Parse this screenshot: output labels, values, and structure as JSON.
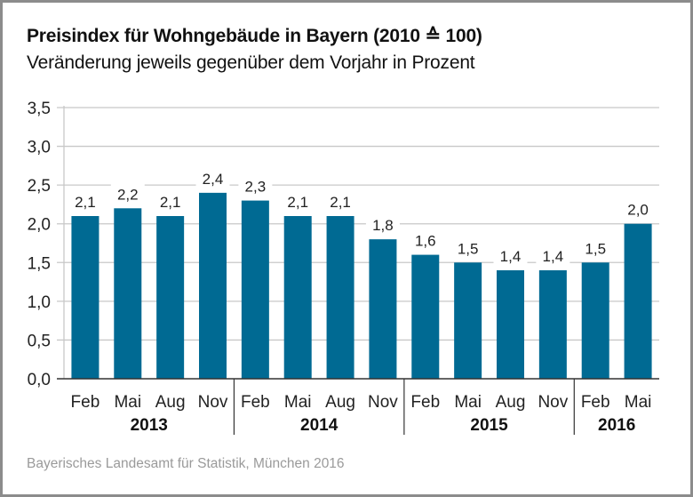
{
  "header": {
    "title": "Preisindex für Wohngebäude in Bayern (2010 ≙ 100)",
    "subtitle": "Veränderung jeweils gegenüber dem Vorjahr in Prozent"
  },
  "footer": {
    "source": "Bayerisches Landesamt für Statistik, München 2016"
  },
  "chart_data": {
    "type": "bar",
    "title": "Preisindex für Wohngebäude in Bayern (2010 ≙ 100)",
    "subtitle": "Veränderung jeweils gegenüber dem Vorjahr in Prozent",
    "xlabel": "",
    "ylabel": "",
    "ylim": [
      0,
      3.5
    ],
    "yticks": [
      "0,0",
      "0,5",
      "1,0",
      "1,5",
      "2,0",
      "2,5",
      "3,0",
      "3,5"
    ],
    "ytick_values": [
      0,
      0.5,
      1.0,
      1.5,
      2.0,
      2.5,
      3.0,
      3.5
    ],
    "grid": true,
    "bar_color": "#006a93",
    "categories": [
      "Feb",
      "Mai",
      "Aug",
      "Nov",
      "Feb",
      "Mai",
      "Aug",
      "Nov",
      "Feb",
      "Mai",
      "Aug",
      "Nov",
      "Feb",
      "Mai"
    ],
    "values": [
      2.1,
      2.2,
      2.1,
      2.4,
      2.3,
      2.1,
      2.1,
      1.8,
      1.6,
      1.5,
      1.4,
      1.4,
      1.5,
      2.0
    ],
    "value_labels": [
      "2,1",
      "2,2",
      "2,1",
      "2,4",
      "2,3",
      "2,1",
      "2,1",
      "1,8",
      "1,6",
      "1,5",
      "1,4",
      "1,4",
      "1,5",
      "2,0"
    ],
    "groups": [
      {
        "label": "2013",
        "count": 4
      },
      {
        "label": "2014",
        "count": 4
      },
      {
        "label": "2015",
        "count": 4
      },
      {
        "label": "2016",
        "count": 2
      }
    ],
    "source": "Bayerisches Landesamt für Statistik, München 2016"
  }
}
